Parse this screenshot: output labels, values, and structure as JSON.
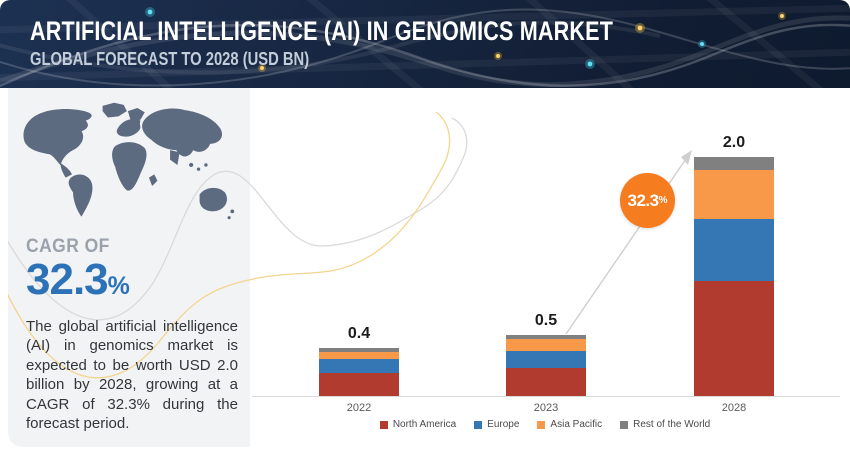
{
  "header": {
    "title": "ARTIFICIAL INTELLIGENCE (AI) IN GENOMICS MARKET",
    "subtitle": "GLOBAL FORECAST TO 2028 (USD BN)"
  },
  "sidebar": {
    "cagr_label": "CAGR OF",
    "cagr_value": "32.3",
    "cagr_percent": "%",
    "description": "The global artificial intelligence (AI) in genomics market is expected to be worth USD 2.0 billion by 2028, growing at a CAGR of 32.3% during the forecast period."
  },
  "growth_badge": {
    "value": "32.3",
    "percent": "%",
    "color": "#f57c1f"
  },
  "chart_data": {
    "type": "bar",
    "stacked": true,
    "title": "Artificial Intelligence (AI) in Genomics Market",
    "unit": "USD BN",
    "categories": [
      "2022",
      "2023",
      "2028"
    ],
    "totals": [
      0.4,
      0.5,
      2.0
    ],
    "total_labels": [
      "0.4",
      "0.5",
      "2.0"
    ],
    "series": [
      {
        "name": "North America",
        "color": "#b23b30",
        "values": [
          0.19,
          0.23,
          0.96
        ]
      },
      {
        "name": "Europe",
        "color": "#3577b5",
        "values": [
          0.12,
          0.14,
          0.52
        ]
      },
      {
        "name": "Asia Pacific",
        "color": "#f8994a",
        "values": [
          0.06,
          0.1,
          0.41
        ]
      },
      {
        "name": "Rest of the World",
        "color": "#808080",
        "values": [
          0.03,
          0.03,
          0.11
        ]
      }
    ],
    "legend_position": "bottom",
    "grid": false,
    "xlabel": "",
    "ylabel": "",
    "ylim": [
      0,
      2.2
    ]
  }
}
